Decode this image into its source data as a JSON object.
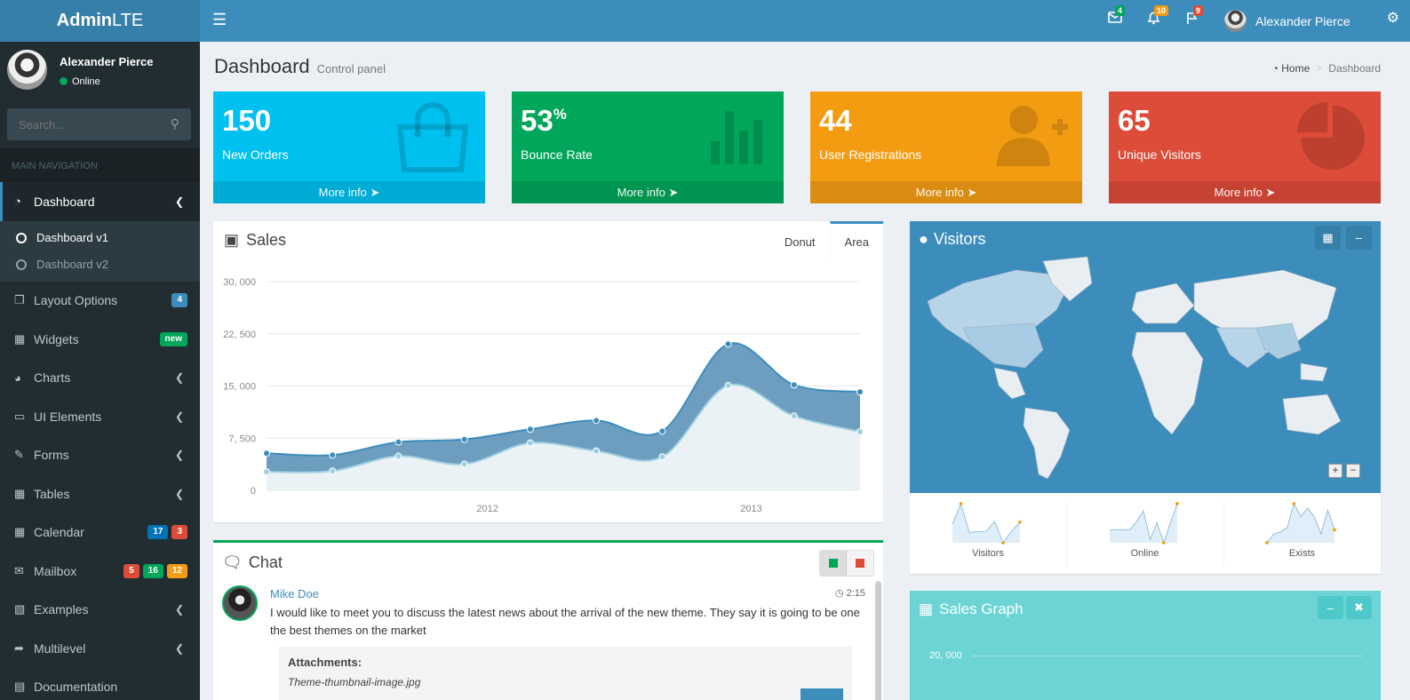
{
  "logo": {
    "bold": "Admin",
    "rest": "LTE"
  },
  "header": {
    "toggle_icon": "bars-icon",
    "messages_count": "4",
    "notifications_count": "10",
    "tasks_count": "9",
    "user_name": "Alexander Pierce",
    "colors": {
      "bar": "#3c8dbc",
      "logo": "#367fa9"
    }
  },
  "sidebar": {
    "user_name": "Alexander Pierce",
    "status": "Online",
    "search_placeholder": "Search...",
    "header": "MAIN NAVIGATION",
    "items": [
      {
        "label": "Dashboard",
        "icon": "dashboard-icon",
        "active": true
      },
      {
        "label": "Layout Options",
        "icon": "files-icon",
        "badges": [
          "4"
        ]
      },
      {
        "label": "Widgets",
        "icon": "th-icon",
        "badges": [
          "new"
        ]
      },
      {
        "label": "Charts",
        "icon": "pie-chart-icon"
      },
      {
        "label": "UI Elements",
        "icon": "laptop-icon"
      },
      {
        "label": "Forms",
        "icon": "edit-icon"
      },
      {
        "label": "Tables",
        "icon": "table-icon"
      },
      {
        "label": "Calendar",
        "icon": "calendar-icon",
        "badges": [
          "17",
          "3"
        ]
      },
      {
        "label": "Mailbox",
        "icon": "envelope-icon",
        "badges": [
          "5",
          "16",
          "12"
        ]
      },
      {
        "label": "Examples",
        "icon": "folder-icon"
      },
      {
        "label": "Multilevel",
        "icon": "share-icon"
      },
      {
        "label": "Documentation",
        "icon": "book-icon"
      }
    ],
    "sub": [
      "Dashboard v1",
      "Dashboard v2"
    ]
  },
  "content": {
    "title": "Dashboard",
    "subtitle": "Control panel",
    "breadcrumb": [
      "Home",
      "Dashboard"
    ]
  },
  "stats": [
    {
      "value": "150",
      "sup": "",
      "label": "New Orders",
      "more": "More info",
      "color": "#00c0ef"
    },
    {
      "value": "53",
      "sup": "%",
      "label": "Bounce Rate",
      "more": "More info",
      "color": "#00a65a"
    },
    {
      "value": "44",
      "sup": "",
      "label": "User Registrations",
      "more": "More info",
      "color": "#f39c12"
    },
    {
      "value": "65",
      "sup": "",
      "label": "Unique Visitors",
      "more": "More info",
      "color": "#dd4b39"
    }
  ],
  "sales": {
    "title": "Sales",
    "tabs": [
      "Donut",
      "Area"
    ]
  },
  "chart_data": {
    "type": "area",
    "x": [
      "2011 Q1",
      "2011 Q2",
      "2011 Q3",
      "2011 Q4",
      "2012 Q1",
      "2012 Q2",
      "2012 Q3",
      "2012 Q4",
      "2013 Q1",
      "2013 Q2"
    ],
    "x_ticks": [
      "2012",
      "2013"
    ],
    "y_ticks": [
      "0",
      "7, 500",
      "15, 000",
      "22, 500",
      "30, 000"
    ],
    "ylim": [
      0,
      30000
    ],
    "series": [
      {
        "values": [
          2666,
          2778,
          4912,
          3767,
          6810,
          5670,
          4820,
          15073,
          10687,
          8432
        ],
        "color": "#a0d0e0"
      },
      {
        "values": [
          5333,
          5072,
          6936,
          7321,
          8786,
          10040,
          8502,
          21028,
          15160,
          14152
        ],
        "color": "#3c8dbc"
      }
    ]
  },
  "chat": {
    "title": "Chat",
    "author": "Mike Doe",
    "time": "2:15",
    "message": "I would like to meet you to discuss the latest news about the arrival of the new theme. They say it is going to be one the best themes on the market",
    "attachments_label": "Attachments:",
    "attachment_file": "Theme-thumbnail-image.jpg"
  },
  "visitors": {
    "title": "Visitors",
    "sparklines": [
      {
        "label": "Visitors",
        "values": [
          1000,
          1200,
          920,
          927,
          931,
          1027,
          819,
          930,
          1021
        ]
      },
      {
        "label": "Online",
        "values": [
          515,
          519,
          520,
          522,
          652,
          810,
          370,
          627,
          319,
          630,
          921
        ]
      },
      {
        "label": "Exists",
        "values": [
          15,
          19,
          20,
          22,
          33,
          27,
          31,
          27,
          19,
          30,
          21
        ]
      }
    ]
  },
  "sales_graph": {
    "title": "Sales Graph",
    "y_tick": "20, 000"
  }
}
